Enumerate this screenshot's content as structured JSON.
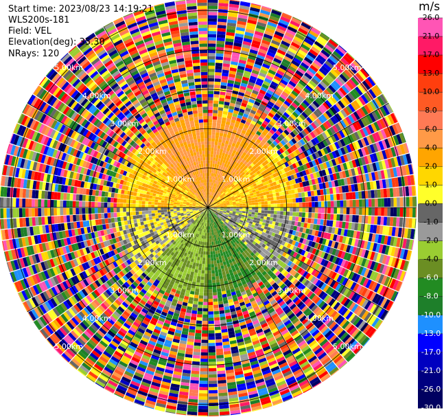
{
  "header": {
    "start_time": "Start time: 2023/08/23 14:19:21",
    "instrument": "WLS200s-181",
    "field": "Field: VEL",
    "elevation": "Elevation(deg): 35.30",
    "nrays": "NRays: 120"
  },
  "chart_data": {
    "type": "ppi-radar",
    "field": "VEL",
    "unit": "m/s",
    "elevation_deg": 35.3,
    "nrays": 120,
    "range_rings": [
      {
        "label": "1.00km",
        "km": 1.0
      },
      {
        "label": "2.00km",
        "km": 2.0
      },
      {
        "label": "3.00km",
        "km": 3.0
      },
      {
        "label": "4.00km",
        "km": 4.0
      },
      {
        "label": "5.00km",
        "km": 5.0
      }
    ],
    "max_range_km": 5.3,
    "valid_range_km": 2.55,
    "colorbar": {
      "ticks": [
        "26.0",
        "21.0",
        "17.0",
        "13.0",
        "10.0",
        "8.0",
        "6.0",
        "4.0",
        "2.0",
        "1.0",
        "0.0",
        "-1.0",
        "-2.0",
        "-4.0",
        "-6.0",
        "-8.0",
        "-10.0",
        "-13.0",
        "-17.0",
        "-21.0",
        "-26.0",
        "-30.0"
      ],
      "colors": [
        "#ff55b5",
        "#ff1a66",
        "#ff0000",
        "#ff3e0e",
        "#ff5a24",
        "#ff7a55",
        "#ff9a47",
        "#ffa500",
        "#ffd700",
        "#ffff2a",
        "#666666",
        "#9a9a9a",
        "#9acd32",
        "#6b8e23",
        "#228b22",
        "#1e7f2a",
        "#1e90ff",
        "#0000ff",
        "#0000c0",
        "#000080",
        "#000060"
      ]
    },
    "sectors": [
      {
        "az_from": 0,
        "az_to": 45,
        "dominant_mps": 4.0
      },
      {
        "az_from": 45,
        "az_to": 90,
        "dominant_mps": 2.0
      },
      {
        "az_from": 90,
        "az_to": 135,
        "dominant_mps": -1.0
      },
      {
        "az_from": 135,
        "az_to": 180,
        "dominant_mps": -6.0
      },
      {
        "az_from": 180,
        "az_to": 225,
        "dominant_mps": -4.0
      },
      {
        "az_from": 225,
        "az_to": 270,
        "dominant_mps": 0.0
      },
      {
        "az_from": 270,
        "az_to": 315,
        "dominant_mps": 2.0
      },
      {
        "az_from": 315,
        "az_to": 360,
        "dominant_mps": 4.0
      }
    ]
  }
}
